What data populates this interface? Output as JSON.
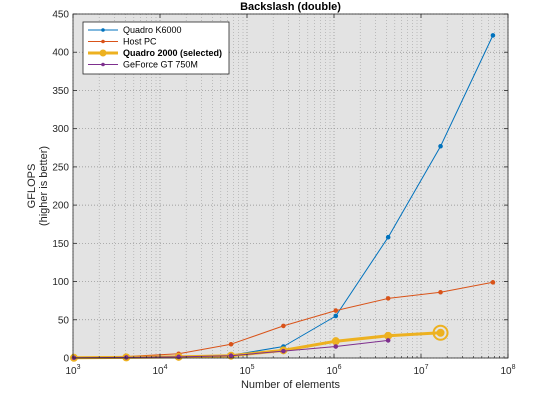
{
  "chart_data": {
    "type": "line",
    "title": "Backslash (double)",
    "xlabel": "Number of elements",
    "ylabel_lines": [
      "GFLOPS",
      "(higher is better)"
    ],
    "x_scale": "log",
    "xlim": [
      1000,
      100000000
    ],
    "ylim": [
      0,
      450
    ],
    "x_ticks": [
      {
        "value": 1000,
        "base": "10",
        "exp": "3"
      },
      {
        "value": 10000,
        "base": "10",
        "exp": "4"
      },
      {
        "value": 100000,
        "base": "10",
        "exp": "5"
      },
      {
        "value": 1000000,
        "base": "10",
        "exp": "6"
      },
      {
        "value": 10000000,
        "base": "10",
        "exp": "7"
      },
      {
        "value": 100000000,
        "base": "10",
        "exp": "8"
      }
    ],
    "y_ticks": [
      0,
      50,
      100,
      150,
      200,
      250,
      300,
      350,
      400,
      450
    ],
    "grid": true,
    "minor_grid": true,
    "legend_position": "top-left",
    "background_color": "#e3e3e3",
    "series": [
      {
        "name": "Quadro K6000",
        "color": "#0072bd",
        "bold": false,
        "x": [
          1024,
          4096,
          16384,
          65536,
          262144,
          1048576,
          4194304,
          16777216,
          67108864
        ],
        "y": [
          0.5,
          1.0,
          2.0,
          3.5,
          15,
          55,
          158,
          277,
          422
        ]
      },
      {
        "name": "Host PC",
        "color": "#d95319",
        "bold": false,
        "x": [
          1024,
          4096,
          16384,
          65536,
          262144,
          1048576,
          4194304,
          16777216,
          67108864
        ],
        "y": [
          1.0,
          2.0,
          5.5,
          18,
          42,
          62,
          78,
          86,
          99
        ]
      },
      {
        "name": "Quadro 2000 (selected)",
        "color": "#edb120",
        "bold": true,
        "x": [
          1024,
          4096,
          16384,
          65536,
          262144,
          1048576,
          4194304,
          16777216
        ],
        "y": [
          0.3,
          0.8,
          1.5,
          3.0,
          10,
          22,
          29,
          33
        ]
      },
      {
        "name": "GeForce GT 750M",
        "color": "#7e2f8e",
        "bold": false,
        "x": [
          1024,
          4096,
          16384,
          65536,
          262144,
          1048576,
          4194304
        ],
        "y": [
          0.3,
          0.8,
          1.5,
          3.0,
          9,
          15,
          23
        ]
      }
    ]
  }
}
